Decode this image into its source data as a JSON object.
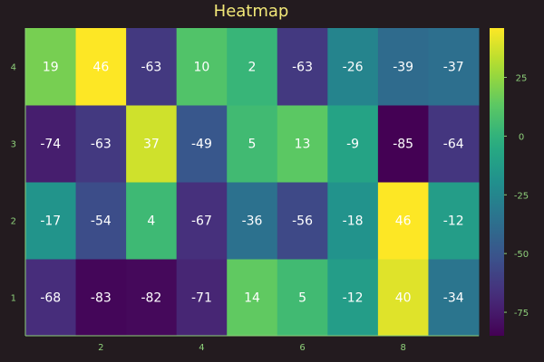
{
  "chart_data": {
    "type": "heatmap",
    "title": "Heatmap",
    "xlabel": "",
    "ylabel": "",
    "x": [
      1,
      2,
      3,
      4,
      5,
      6,
      7,
      8,
      9
    ],
    "y": [
      1,
      2,
      3,
      4
    ],
    "x_ticks": [
      2,
      4,
      6,
      8
    ],
    "y_ticks": [
      1,
      2,
      3,
      4
    ],
    "values": [
      [
        -68,
        -83,
        -82,
        -71,
        14,
        5,
        -12,
        40,
        -34
      ],
      [
        -17,
        -54,
        4,
        -67,
        -36,
        -56,
        -18,
        46,
        -12
      ],
      [
        -74,
        -63,
        37,
        -49,
        5,
        13,
        -9,
        -85,
        -64
      ],
      [
        19,
        46,
        -63,
        10,
        2,
        -63,
        -26,
        -39,
        -37
      ]
    ],
    "colorbar": {
      "colormap": "viridis",
      "range": [
        -85,
        46
      ],
      "ticks": [
        25,
        0,
        -25,
        -50,
        -75
      ]
    },
    "grid": false,
    "legend": "none",
    "colors": {
      "background": "#231b1f",
      "title": "#f2e878",
      "ticks": "#8ed07a",
      "axis": "#8ed07a"
    }
  }
}
